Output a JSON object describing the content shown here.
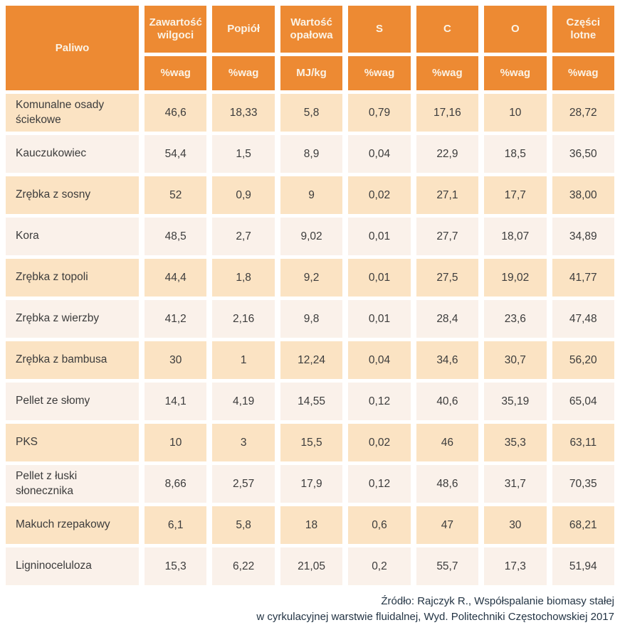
{
  "chart_data": {
    "type": "table",
    "header": {
      "fuel_column": "Paliwo",
      "columns": [
        {
          "label": "Zawartość wilgoci",
          "unit": "%wag"
        },
        {
          "label": "Popiół",
          "unit": "%wag"
        },
        {
          "label": "Wartość opałowa",
          "unit": "MJ/kg"
        },
        {
          "label": "S",
          "unit": "%wag"
        },
        {
          "label": "C",
          "unit": "%wag"
        },
        {
          "label": "O",
          "unit": "%wag"
        },
        {
          "label": "Części lotne",
          "unit": "%wag"
        }
      ]
    },
    "rows": [
      {
        "fuel": "Komunalne osady ściekowe",
        "values": [
          "46,6",
          "18,33",
          "5,8",
          "0,79",
          "17,16",
          "10",
          "28,72"
        ]
      },
      {
        "fuel": "Kauczukowiec",
        "values": [
          "54,4",
          "1,5",
          "8,9",
          "0,04",
          "22,9",
          "18,5",
          "36,50"
        ]
      },
      {
        "fuel": "Zrębka z sosny",
        "values": [
          "52",
          "0,9",
          "9",
          "0,02",
          "27,1",
          "17,7",
          "38,00"
        ]
      },
      {
        "fuel": "Kora",
        "values": [
          "48,5",
          "2,7",
          "9,02",
          "0,01",
          "27,7",
          "18,07",
          "34,89"
        ]
      },
      {
        "fuel": "Zrębka z topoli",
        "values": [
          "44,4",
          "1,8",
          "9,2",
          "0,01",
          "27,5",
          "19,02",
          "41,77"
        ]
      },
      {
        "fuel": "Zrębka z wierzby",
        "values": [
          "41,2",
          "2,16",
          "9,8",
          "0,01",
          "28,4",
          "23,6",
          "47,48"
        ]
      },
      {
        "fuel": "Zrębka z bambusa",
        "values": [
          "30",
          "1",
          "12,24",
          "0,04",
          "34,6",
          "30,7",
          "56,20"
        ]
      },
      {
        "fuel": "Pellet ze słomy",
        "values": [
          "14,1",
          "4,19",
          "14,55",
          "0,12",
          "40,6",
          "35,19",
          "65,04"
        ]
      },
      {
        "fuel": "PKS",
        "values": [
          "10",
          "3",
          "15,5",
          "0,02",
          "46",
          "35,3",
          "63,11"
        ]
      },
      {
        "fuel": "Pellet z łuski słonecznika",
        "values": [
          "8,66",
          "2,57",
          "17,9",
          "0,12",
          "48,6",
          "31,7",
          "70,35"
        ]
      },
      {
        "fuel": "Makuch rzepakowy",
        "values": [
          "6,1",
          "5,8",
          "18",
          "0,6",
          "47",
          "30",
          "68,21"
        ]
      },
      {
        "fuel": "Ligninoceluloza",
        "values": [
          "15,3",
          "6,22",
          "21,05",
          "0,2",
          "55,7",
          "17,3",
          "51,94"
        ]
      }
    ]
  },
  "footer": {
    "line1": "Źródło: Rajczyk R., Współspalanie biomasy stałej",
    "line2": "w cyrkulacyjnej warstwie fluidalnej, Wyd. Politechniki Częstochowskiej 2017"
  },
  "colors": {
    "header_bg": "#ED8A33",
    "header_text": "#FBF3E6",
    "row_odd_bg": "#FBE3C3",
    "row_even_bg": "#FAF1EA",
    "cell_text": "#3C3C3C",
    "footer_text": "#233444"
  }
}
